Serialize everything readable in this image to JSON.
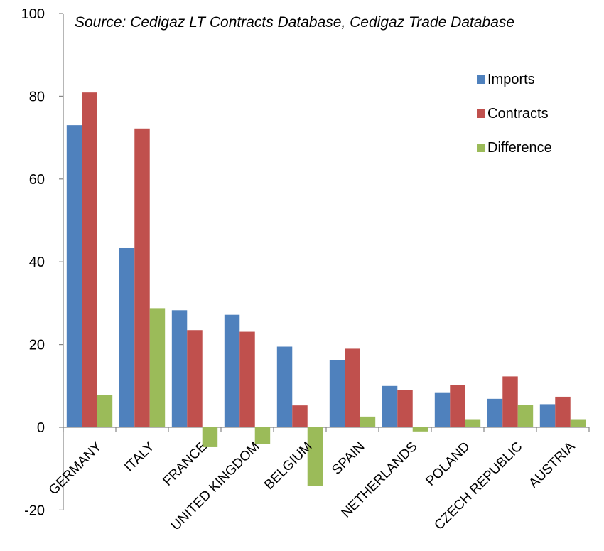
{
  "chart_data": {
    "type": "bar",
    "title": "",
    "source_note": "Source: Cedigaz LT Contracts Database, Cedigaz Trade Database",
    "xlabel": "",
    "ylabel": "",
    "ylim": [
      -20,
      100
    ],
    "yticks": [
      -20,
      0,
      20,
      40,
      60,
      80,
      100
    ],
    "legend_position": "right",
    "categories": [
      "GERMANY",
      "ITALY",
      "FRANCE",
      "UNITED KINGDOM",
      "BELGIUM",
      "SPAIN",
      "NETHERLANDS",
      "POLAND",
      "CZECH REPUBLIC",
      "AUSTRIA"
    ],
    "series": [
      {
        "name": "Imports",
        "color": "#4F81BD",
        "values": [
          73,
          43.3,
          28.3,
          27.2,
          19.5,
          16.3,
          10,
          8.3,
          6.9,
          5.6
        ]
      },
      {
        "name": "Contracts",
        "color": "#C0504D",
        "values": [
          80.9,
          72.2,
          23.5,
          23.1,
          5.3,
          19,
          9,
          10.2,
          12.3,
          7.4
        ]
      },
      {
        "name": "Difference",
        "color": "#9BBB59",
        "values": [
          7.9,
          28.8,
          -4.8,
          -4,
          -14.2,
          2.6,
          -1,
          1.8,
          5.4,
          1.8
        ]
      }
    ]
  }
}
